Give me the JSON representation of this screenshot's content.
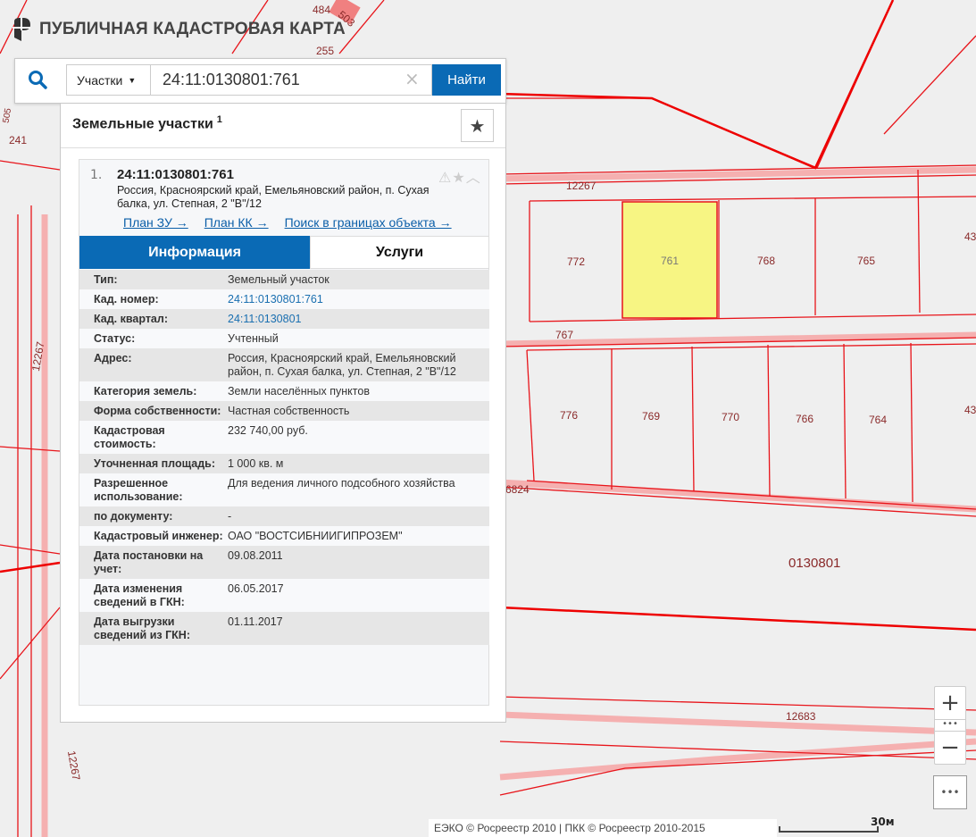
{
  "app": {
    "title": "ПУБЛИЧНАЯ КАДАСТРОВАЯ КАРТА"
  },
  "search": {
    "type": "Участки",
    "value": "24:11:0130801:761",
    "clear": "×",
    "button": "Найти"
  },
  "panel": {
    "title": "Земельные участки",
    "count": "1",
    "result": {
      "index": "1.",
      "number": "24:11:0130801:761",
      "address": "Россия, Красноярский край, Емельяновский район, п. Сухая балка, ул. Степная, 2 \"В\"/12",
      "links": [
        "План ЗУ →",
        "План КК →",
        "Поиск в границах объекта →"
      ],
      "tabs": [
        "Информация",
        "Услуги"
      ],
      "rows": [
        {
          "k": "Тип:",
          "v": "Земельный участок"
        },
        {
          "k": "Кад. номер:",
          "v": "24:11:0130801:761"
        },
        {
          "k": "Кад. квартал:",
          "v": "24:11:0130801"
        },
        {
          "k": "Статус:",
          "v": "Учтенный"
        },
        {
          "k": "Адрес:",
          "v": "Россия, Красноярский край, Емельяновский район, п. Сухая балка, ул. Степная, 2 \"В\"/12"
        },
        {
          "k": "Категория земель:",
          "v": "Земли населённых пунктов"
        },
        {
          "k": "Форма собственности:",
          "v": "Частная собственность"
        },
        {
          "k": "Кадастровая стоимость:",
          "v": "232 740,00 руб."
        },
        {
          "k": "Уточненная площадь:",
          "v": "1 000 кв. м"
        },
        {
          "k": "Разрешенное использование:",
          "v": "Для ведения личного подсобного хозяйства"
        },
        {
          "k": "по документу:",
          "v": "-"
        },
        {
          "k": "Кадастровый инженер:",
          "v": "ОАО \"ВОСТСИБНИИГИПРОЗЕМ\""
        },
        {
          "k": "Дата постановки на учет:",
          "v": "09.08.2011"
        },
        {
          "k": "Дата изменения сведений в ГКН:",
          "v": "06.05.2017"
        },
        {
          "k": "Дата выгрузки сведений из ГКН:",
          "v": "01.11.2017"
        }
      ]
    }
  },
  "map": {
    "labels": [
      "484",
      "503",
      "255",
      "241",
      "505",
      "12267",
      "772",
      "761",
      "768",
      "765",
      "43",
      "767",
      "776",
      "769",
      "770",
      "766",
      "764",
      "43",
      "12267",
      "6824",
      "0130801",
      "12683",
      "12267"
    ],
    "selected_fill": "#f7f583",
    "line_color": "#e8141a"
  },
  "controls": {
    "zoom_in": "+",
    "zoom_out": "−",
    "more": "•••"
  },
  "footer": {
    "attribution": "ЕЭКО © Росреестр 2010 | ПКК © Росреестр 2010-2015",
    "scale": "30м"
  }
}
